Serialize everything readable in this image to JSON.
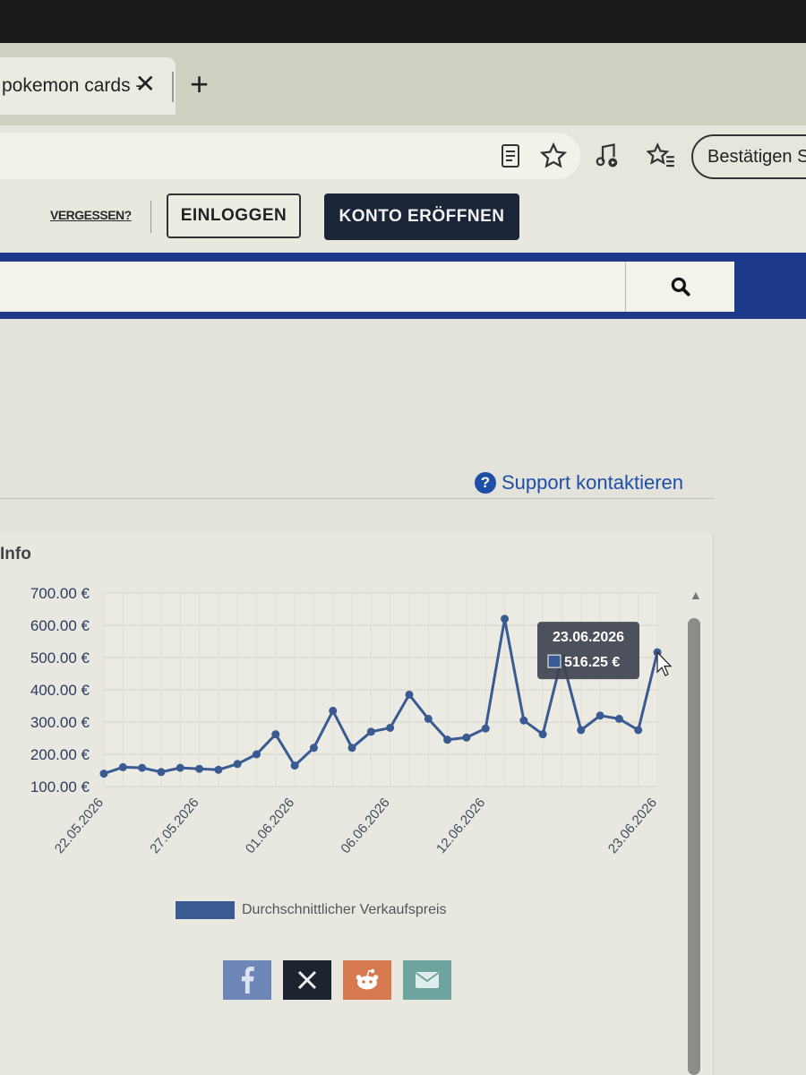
{
  "browser": {
    "tab_title": "pokemon cards -",
    "tab_close": "✕",
    "new_tab": "+",
    "profile_label": "Bestätigen S"
  },
  "header": {
    "forgot_label": "VERGESSEN?",
    "login_label": "EINLOGGEN",
    "signup_label": "KONTO ERÖFFNEN"
  },
  "search": {
    "placeholder": ""
  },
  "support_label": "Support kontaktieren",
  "panel_title": "Info",
  "chart_data": {
    "type": "line",
    "y_ticks": [
      "700.00 €",
      "600.00 €",
      "500.00 €",
      "400.00 €",
      "300.00 €",
      "200.00 €",
      "100.00 €"
    ],
    "ylim": [
      100,
      700
    ],
    "x_tick_labels": [
      "22.05.2026",
      "27.05.2026",
      "01.06.2026",
      "06.06.2026",
      "12.06.2026",
      "23.06.2026"
    ],
    "x_tick_indices": [
      0,
      5,
      10,
      15,
      20,
      29
    ],
    "series": [
      {
        "name": "Durchschnittlicher Verkaufspreis",
        "color": "#3a5a92",
        "values": [
          140,
          160,
          158,
          145,
          158,
          155,
          152,
          170,
          200,
          262,
          165,
          220,
          335,
          220,
          270,
          282,
          385,
          310,
          245,
          252,
          280,
          620,
          305,
          262,
          500,
          275,
          320,
          310,
          275,
          516.25
        ]
      }
    ],
    "tooltip": {
      "date": "23.06.2026",
      "value": "516.25 €"
    },
    "legend": "bottom",
    "grid": true
  }
}
